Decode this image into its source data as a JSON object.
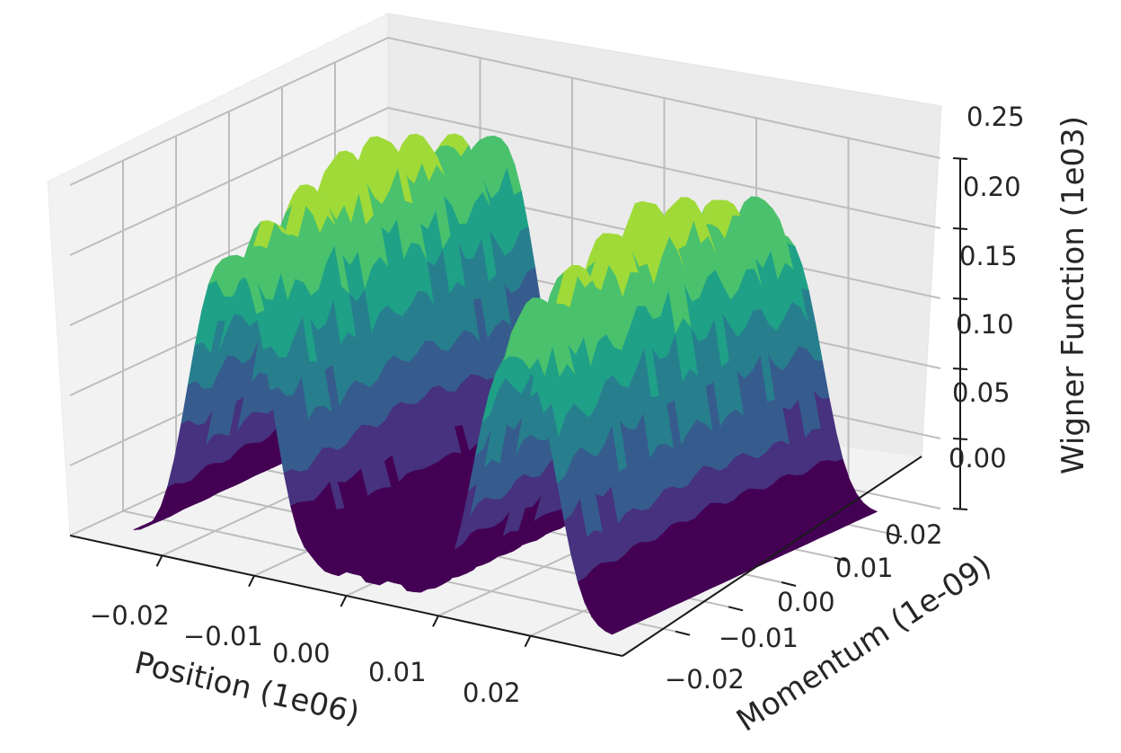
{
  "chart_data": {
    "type": "surface3d",
    "colormap": "viridis",
    "xlabel": "Position (1e06)",
    "ylabel": "Momentum (1e-09)",
    "zlabel": "Wigner Function (1e03)",
    "x_ticks": [
      "−0.02",
      "−0.01",
      "0.00",
      "0.01",
      "0.02"
    ],
    "y_ticks": [
      "−0.02",
      "−0.01",
      "0.00",
      "0.01",
      "0.02"
    ],
    "z_ticks": [
      "0.00",
      "0.05",
      "0.10",
      "0.15",
      "0.20",
      "0.25"
    ],
    "x_range": [
      -0.03,
      0.03
    ],
    "y_range": [
      -0.03,
      0.03
    ],
    "z_range": [
      0,
      0.25
    ],
    "grid": true,
    "colors": [
      "#440154",
      "#46327e",
      "#365c8d",
      "#277f8e",
      "#1fa187",
      "#4ac16d",
      "#a0da39",
      "#fde725"
    ],
    "peaks": [
      {
        "x_center": -0.0155,
        "x_halfwidth": 0.0055,
        "height": 0.24
      },
      {
        "x_center": 0.0155,
        "x_halfwidth": 0.0055,
        "height": 0.24
      }
    ]
  }
}
